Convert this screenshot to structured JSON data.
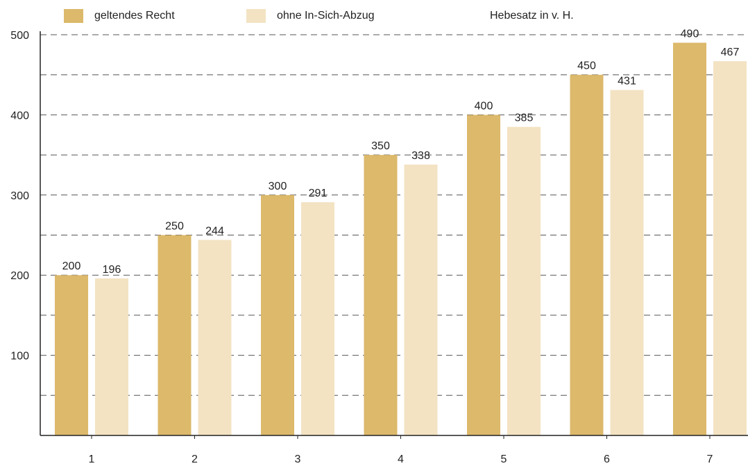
{
  "chart_data": {
    "type": "bar",
    "categories": [
      "1",
      "2",
      "3",
      "4",
      "5",
      "6",
      "7"
    ],
    "series": [
      {
        "name": "geltendes Recht",
        "values": [
          200,
          250,
          300,
          350,
          400,
          450,
          490
        ],
        "color": "#dcb96b"
      },
      {
        "name": "ohne In-Sich-Abzug",
        "values": [
          196,
          244,
          291,
          338,
          385,
          431,
          467
        ],
        "color": "#f3e3c3"
      }
    ],
    "title": "Hebesatz in v. H.",
    "xlabel": "",
    "ylabel": "",
    "ylim": [
      0,
      500
    ],
    "yticks": [
      100,
      200,
      300,
      400,
      500
    ],
    "grid": true,
    "legend_position": "top"
  }
}
